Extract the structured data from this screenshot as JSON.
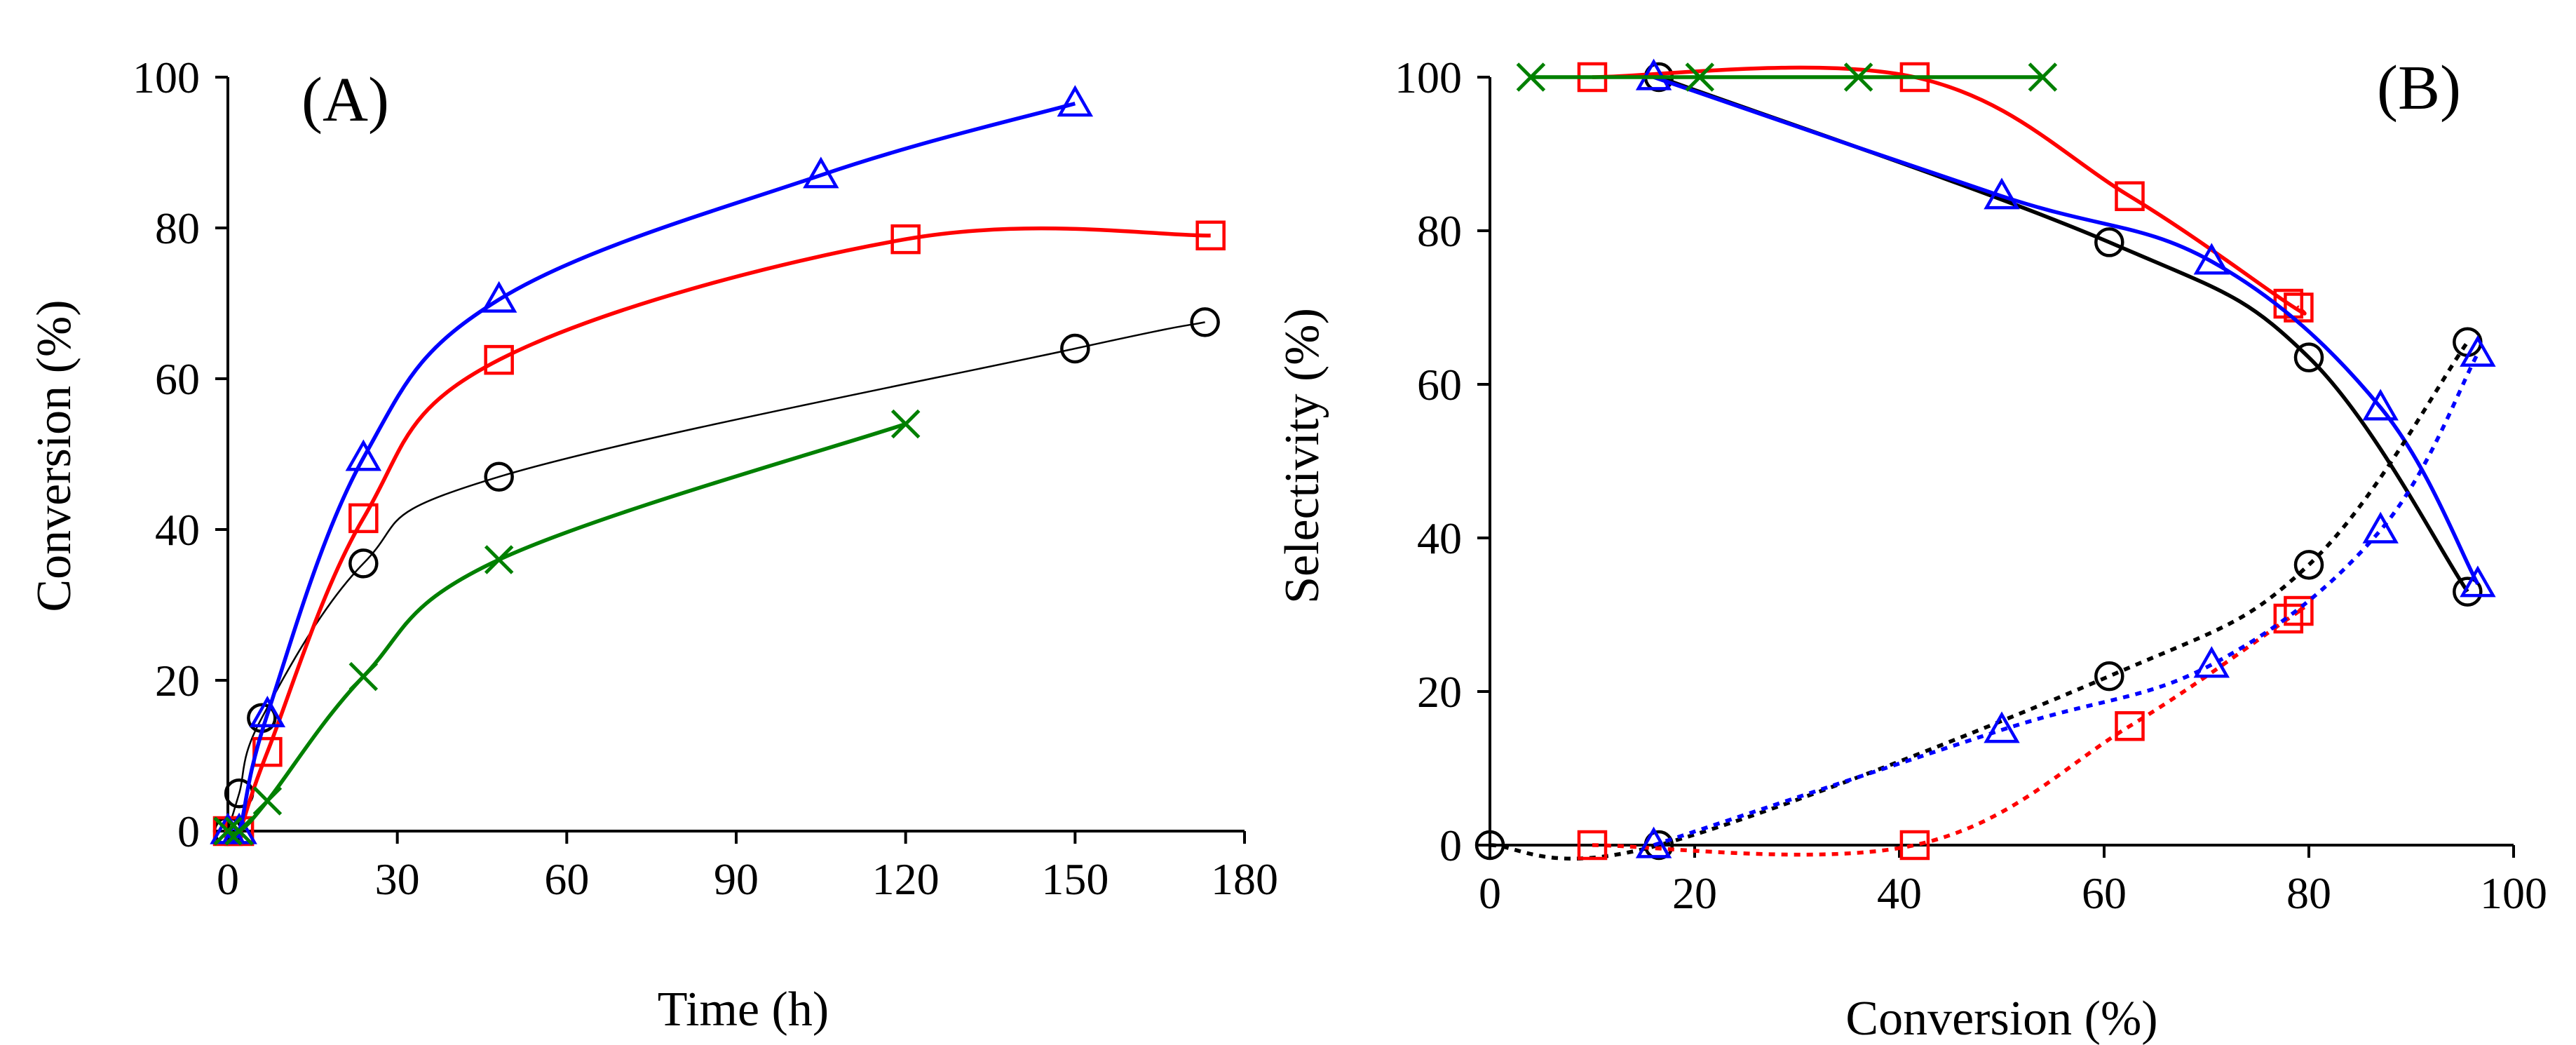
{
  "chart_data": [
    {
      "type": "line",
      "panel_label": "(A)",
      "xlabel": "Time (h)",
      "ylabel": "Conversion (%)",
      "xlim": [
        0,
        180
      ],
      "ylim": [
        0,
        100
      ],
      "x_ticks": [
        "0",
        "30",
        "60",
        "90",
        "120",
        "150",
        "180"
      ],
      "y_ticks": [
        "0",
        "20",
        "40",
        "60",
        "80",
        "100"
      ],
      "grid": false,
      "series": [
        {
          "name": "circle",
          "marker": "circle",
          "color": "#000000",
          "line_style": "solid",
          "thin": true,
          "x": [
            0,
            2,
            6,
            24,
            48,
            150,
            173
          ],
          "y": [
            0,
            5,
            15,
            35.5,
            47,
            64,
            67.5
          ]
        },
        {
          "name": "square",
          "marker": "square",
          "color": "#ff0000",
          "line_style": "solid",
          "x": [
            0,
            2,
            7,
            24,
            48,
            120,
            174
          ],
          "y": [
            0,
            0,
            10.5,
            41.5,
            62.5,
            78.5,
            79
          ]
        },
        {
          "name": "triangle",
          "marker": "triangle",
          "color": "#0000ff",
          "line_style": "solid",
          "x": [
            0,
            2,
            7,
            24,
            48,
            105,
            150
          ],
          "y": [
            0,
            0,
            15.5,
            49.5,
            70.5,
            87,
            96.5
          ]
        },
        {
          "name": "cross",
          "marker": "x",
          "color": "#008000",
          "line_style": "solid",
          "x": [
            0,
            2,
            7,
            24,
            48,
            120
          ],
          "y": [
            0,
            0,
            4,
            20.5,
            36,
            54
          ]
        }
      ]
    },
    {
      "type": "line",
      "panel_label": "(B)",
      "xlabel": "Conversion (%)",
      "ylabel": "Selectivity (%)",
      "xlim": [
        0,
        100
      ],
      "ylim": [
        0,
        100
      ],
      "x_ticks": [
        "0",
        "20",
        "40",
        "60",
        "80",
        "100"
      ],
      "y_ticks": [
        "0",
        "20",
        "40",
        "60",
        "80",
        "100"
      ],
      "grid": false,
      "series": [
        {
          "name": "circle-solid",
          "marker": "circle",
          "color": "#000000",
          "line_style": "solid",
          "x": [
            16.5,
            60.5,
            80,
            95.5
          ],
          "y": [
            100,
            78.5,
            63.5,
            33
          ]
        },
        {
          "name": "square-solid",
          "marker": "square",
          "color": "#ff0000",
          "line_style": "solid",
          "x": [
            10,
            41.5,
            62.5,
            78,
            79
          ],
          "y": [
            100,
            100,
            84.5,
            70.5,
            70
          ]
        },
        {
          "name": "triangle-solid",
          "marker": "triangle",
          "color": "#0000ff",
          "line_style": "solid",
          "x": [
            16,
            50,
            70.5,
            87,
            96.5
          ],
          "y": [
            100,
            84.5,
            76,
            57,
            34
          ]
        },
        {
          "name": "cross-solid",
          "marker": "x",
          "color": "#008000",
          "line_style": "solid",
          "x": [
            4,
            20.5,
            36,
            54
          ],
          "y": [
            100,
            100,
            100,
            100
          ]
        },
        {
          "name": "circle-dotted",
          "marker": "circle",
          "color": "#000000",
          "line_style": "dotted",
          "x": [
            0,
            16.5,
            60.5,
            80,
            95.5
          ],
          "y": [
            0,
            0,
            22,
            36.5,
            65.5
          ]
        },
        {
          "name": "square-dotted",
          "marker": "square",
          "color": "#ff0000",
          "line_style": "dotted",
          "x": [
            10,
            41.5,
            62.5,
            78,
            79
          ],
          "y": [
            0,
            0,
            15.5,
            29.5,
            30.5
          ]
        },
        {
          "name": "triangle-dotted",
          "marker": "triangle",
          "color": "#0000ff",
          "line_style": "dotted",
          "x": [
            16,
            50,
            70.5,
            87,
            96.5
          ],
          "y": [
            0,
            15,
            23.5,
            41,
            64
          ]
        }
      ]
    }
  ]
}
